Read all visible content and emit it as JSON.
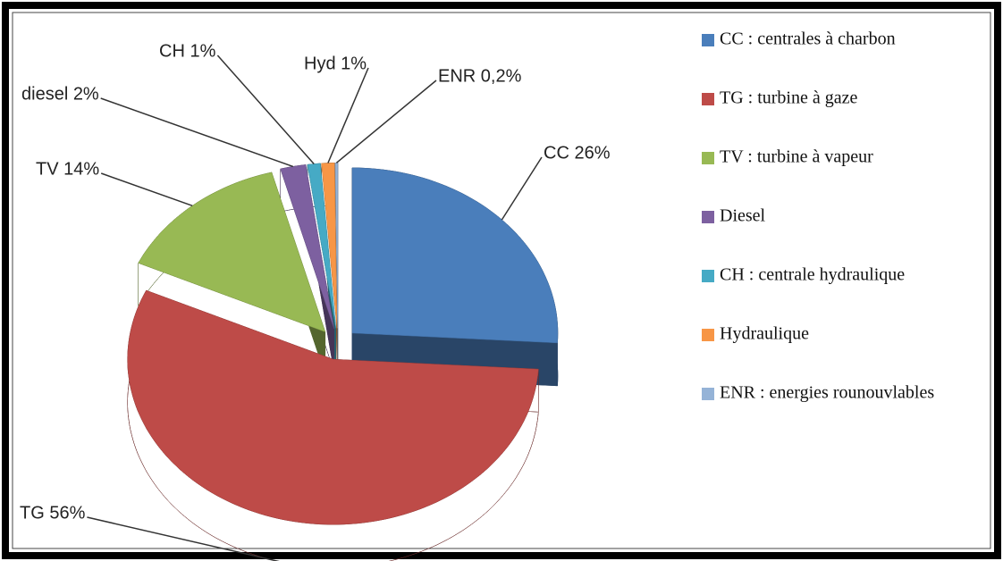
{
  "chart_data": {
    "type": "pie",
    "categories": [
      "CC : centrales à charbon",
      "TG : turbine à gaze",
      "TV : turbine à vapeur",
      "Diesel",
      "CH : centrale hydraulique",
      "Hydraulique",
      "ENR : energies rounouvlables"
    ],
    "values": [
      26,
      56,
      14,
      2,
      1,
      1,
      0.2
    ],
    "value_labels": [
      "CC 26%",
      "TG 56%",
      "TV 14%",
      "diesel 2%",
      "CH 1%",
      "Hyd 1%",
      "ENR 0,2%"
    ],
    "colors": [
      "#4a7ebb",
      "#be4b48",
      "#98b954",
      "#7d60a0",
      "#46aac5",
      "#f79646",
      "#95b3d7"
    ],
    "legend": "right"
  }
}
